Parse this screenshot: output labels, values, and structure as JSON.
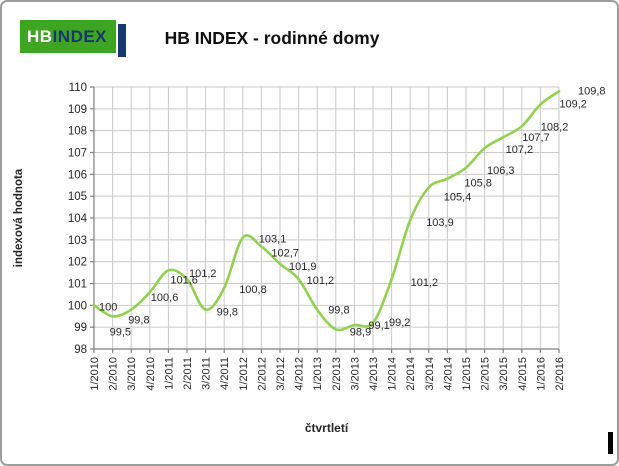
{
  "logo": {
    "hb": "HB",
    "index": "INDEX",
    "green": "#3ea522",
    "navy": "#17386b"
  },
  "header": {
    "title": "HB INDEX - rodinné domy"
  },
  "chart_data": {
    "type": "line",
    "title": "HB INDEX - rodinné domy",
    "xlabel": "čtvrtletí",
    "ylabel": "indexová hodnota",
    "categories": [
      "1/2010",
      "2/2010",
      "3/2010",
      "4/2010",
      "1/2011",
      "2/2011",
      "3/2011",
      "4/2011",
      "1/2012",
      "2/2012",
      "3/2012",
      "4/2012",
      "1/2013",
      "2/2013",
      "3/2013",
      "4/2013",
      "1/2014",
      "2/2014",
      "3/2014",
      "4/2014",
      "1/2015",
      "2/2015",
      "3/2015",
      "4/2015",
      "1/2016",
      "2/2016"
    ],
    "values": [
      100,
      99.5,
      99.8,
      100.6,
      101.6,
      101.2,
      99.8,
      100.8,
      103.1,
      102.7,
      101.9,
      101.2,
      99.8,
      98.9,
      99.1,
      99.2,
      101.2,
      103.9,
      105.4,
      105.8,
      106.3,
      107.2,
      107.7,
      108.2,
      109.2,
      109.8
    ],
    "point_labels": [
      "100",
      "99,5",
      "99,8",
      "100,6",
      "101,6",
      "101,2",
      "99,8",
      "100,8",
      "103,1",
      "102,7",
      "101,9",
      "101,2",
      "99,8",
      "98,9",
      "99,1",
      "99,2",
      "101,2",
      "103,9",
      "105,4",
      "105,8",
      "106,3",
      "107,2",
      "107,7",
      "108,2",
      "109,2",
      "109,8"
    ],
    "ylim": [
      98,
      110
    ],
    "ytick_step": 1,
    "grid": true,
    "legend_position": "none",
    "line_color": "#92d050",
    "gridline_color": "#c9c9c9",
    "axis_color": "#7f7f7f",
    "text_color": "#262626"
  }
}
